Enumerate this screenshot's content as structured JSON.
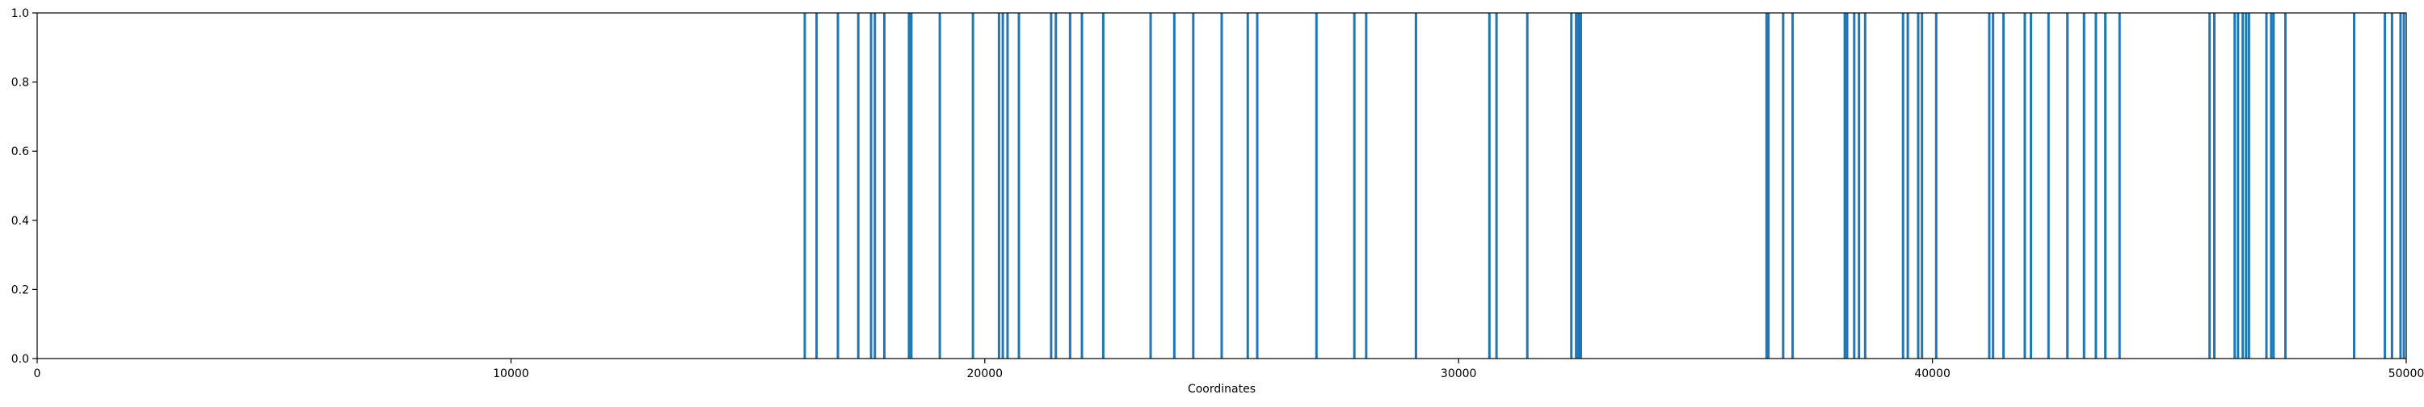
{
  "chart_data": {
    "type": "bar",
    "title": "",
    "xlabel": "Coordinates",
    "ylabel": "",
    "xlim": [
      0,
      50000
    ],
    "ylim": [
      0,
      1.0
    ],
    "xticks": [
      "0",
      "10000",
      "20000",
      "30000",
      "40000",
      "50000"
    ],
    "yticks": [
      "0.0",
      "0.2",
      "0.4",
      "0.6",
      "0.8",
      "1.0"
    ],
    "grid": false,
    "legend": "none",
    "bar_color": "#1f77b4",
    "bar_height": 1.0,
    "x": [
      16200,
      16450,
      16900,
      17330,
      17600,
      17680,
      17880,
      18400,
      18450,
      19050,
      19750,
      20300,
      20380,
      20480,
      20720,
      21400,
      21500,
      21800,
      22050,
      22500,
      23500,
      24000,
      24400,
      25000,
      25550,
      25750,
      27000,
      27800,
      28050,
      29100,
      30650,
      30800,
      31450,
      32380,
      32480,
      32530,
      32580,
      36500,
      36540,
      36850,
      37050,
      38150,
      38200,
      38350,
      38450,
      38580,
      39380,
      39480,
      39700,
      39780,
      40080,
      41200,
      41280,
      41500,
      41950,
      42080,
      42450,
      42850,
      43200,
      43450,
      43650,
      43950,
      45850,
      45950,
      46380,
      46450,
      46550,
      46620,
      46680,
      47050,
      47150,
      47200,
      47450,
      48900,
      49550,
      49700,
      49880,
      49950
    ]
  }
}
